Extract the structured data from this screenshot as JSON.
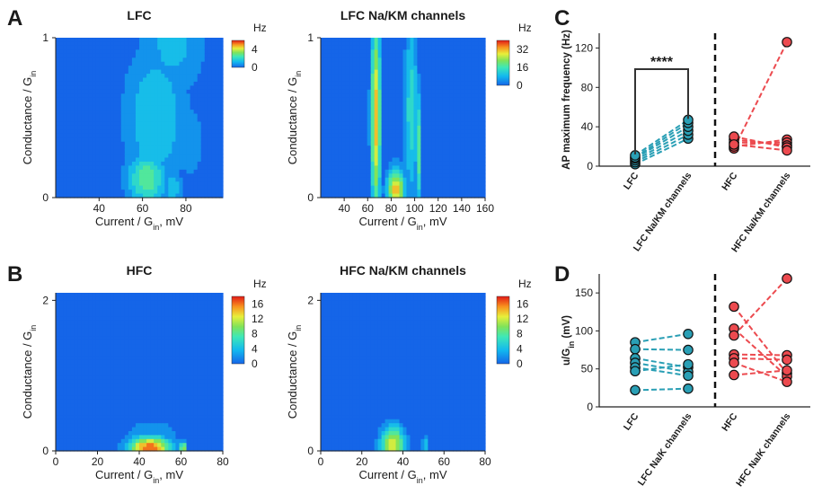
{
  "panel_letters": [
    "A",
    "B",
    "C",
    "D"
  ],
  "cbar_unit": "Hz",
  "colors": {
    "label_text": "#1a1a1a",
    "lfc": "#2a9fb5",
    "hfc": "#ec4a4f",
    "heatmap_bg": "#1565e8"
  },
  "chart_data": [
    {
      "id": "A1",
      "type": "heatmap",
      "title": "LFC",
      "xlabel_main": "Current / G",
      "xlabel_sub": "in",
      "xlabel_tail": ", mV",
      "ylabel_main": "Conductance / G",
      "ylabel_sub": "in",
      "xlim": [
        20,
        97
      ],
      "ylim": [
        0,
        1
      ],
      "xticks": [
        40,
        60,
        80
      ],
      "yticks": [
        0,
        1
      ],
      "colorbar": {
        "ticks": [
          0,
          4
        ],
        "max": 6
      },
      "blobs": [
        {
          "x": 74,
          "y": 0.98,
          "rx": 19,
          "ry": 0.45,
          "v": 1.6
        },
        {
          "x": 66,
          "y": 0.5,
          "rx": 18,
          "ry": 0.55,
          "v": 2.0
        },
        {
          "x": 62,
          "y": 0.12,
          "rx": 11,
          "ry": 0.2,
          "v": 3.2
        },
        {
          "x": 74,
          "y": 0.06,
          "rx": 5,
          "ry": 0.12,
          "v": 2.0
        },
        {
          "x": 82,
          "y": 0.35,
          "rx": 8,
          "ry": 0.3,
          "v": 1.2
        }
      ]
    },
    {
      "id": "A2",
      "type": "heatmap",
      "title": "LFC Na/KM channels",
      "xlabel_main": "Current / G",
      "xlabel_sub": "in",
      "xlabel_tail": ", mV",
      "ylabel_main": "Conductance / G",
      "ylabel_sub": "in",
      "xlim": [
        20,
        160
      ],
      "ylim": [
        0,
        1
      ],
      "xticks": [
        40,
        60,
        80,
        100,
        120,
        140,
        160
      ],
      "yticks": [
        0,
        1
      ],
      "colorbar": {
        "ticks": [
          0,
          16,
          32
        ],
        "max": 40
      },
      "blobs": [
        {
          "x": 67,
          "y": 0.5,
          "rx": 5,
          "ry": 0.75,
          "v": 34
        },
        {
          "x": 97,
          "y": 0.55,
          "rx": 7,
          "ry": 0.7,
          "v": 16
        },
        {
          "x": 84,
          "y": 0.05,
          "rx": 9,
          "ry": 0.16,
          "v": 34
        },
        {
          "x": 103,
          "y": 0.3,
          "rx": 3,
          "ry": 0.45,
          "v": 22
        }
      ]
    },
    {
      "id": "B1",
      "type": "heatmap",
      "title": "HFC",
      "xlabel_main": "Current / G",
      "xlabel_sub": "in",
      "xlabel_tail": ", mV",
      "ylabel_main": "Conductance / G",
      "ylabel_sub": "in",
      "xlim": [
        0,
        80
      ],
      "ylim": [
        0,
        2.1
      ],
      "xticks": [
        0,
        20,
        40,
        60,
        80
      ],
      "yticks": [
        0,
        2
      ],
      "colorbar": {
        "ticks": [
          0,
          4,
          8,
          12,
          16
        ],
        "max": 18
      },
      "blobs": [
        {
          "x": 45,
          "y": 0.04,
          "rx": 12,
          "ry": 0.18,
          "v": 18
        },
        {
          "x": 46,
          "y": 0.2,
          "rx": 16,
          "ry": 0.26,
          "v": 4
        },
        {
          "x": 37,
          "y": 0.45,
          "rx": 3,
          "ry": 0.3,
          "v": 2
        },
        {
          "x": 61,
          "y": 0.04,
          "rx": 2,
          "ry": 0.1,
          "v": 14
        }
      ]
    },
    {
      "id": "B2",
      "type": "heatmap",
      "title": "HFC Na/KM channels",
      "xlabel_main": "Current / G",
      "xlabel_sub": "in",
      "xlabel_tail": ", mV",
      "ylabel_main": "Conductance / G",
      "ylabel_sub": "in",
      "xlim": [
        0,
        80
      ],
      "ylim": [
        0,
        2.1
      ],
      "xticks": [
        0,
        20,
        40,
        60,
        80
      ],
      "yticks": [
        0,
        2
      ],
      "colorbar": {
        "ticks": [
          0,
          4,
          8,
          12,
          16
        ],
        "max": 18
      },
      "blobs": [
        {
          "x": 35,
          "y": 0.08,
          "rx": 7,
          "ry": 0.3,
          "v": 14
        },
        {
          "x": 51,
          "y": 0.05,
          "rx": 2,
          "ry": 0.2,
          "v": 6
        }
      ]
    },
    {
      "id": "C",
      "type": "scatter",
      "ylabel_main": "AP maximum frequency (Hz)",
      "ylabel_sub": "",
      "ylim": [
        0,
        135
      ],
      "yticks": [
        0,
        40,
        80,
        120
      ],
      "categories": [
        "LFC",
        "LFC Na/KM channels",
        "HFC",
        "HFC Na/KM channels"
      ],
      "significance": "****",
      "pairs": [
        {
          "group": "lfc",
          "pre": 2,
          "post": 28
        },
        {
          "group": "lfc",
          "pre": 4,
          "post": 32
        },
        {
          "group": "lfc",
          "pre": 6,
          "post": 36
        },
        {
          "group": "lfc",
          "pre": 8,
          "post": 40
        },
        {
          "group": "lfc",
          "pre": 9,
          "post": 44
        },
        {
          "group": "lfc",
          "pre": 11,
          "post": 47
        },
        {
          "group": "hfc",
          "pre": 18,
          "post": 126
        },
        {
          "group": "hfc",
          "pre": 20,
          "post": 27
        },
        {
          "group": "hfc",
          "pre": 24,
          "post": 24
        },
        {
          "group": "hfc",
          "pre": 27,
          "post": 21
        },
        {
          "group": "hfc",
          "pre": 30,
          "post": 19
        },
        {
          "group": "hfc",
          "pre": 22,
          "post": 16
        }
      ]
    },
    {
      "id": "D",
      "type": "scatter",
      "ylabel_main": "u/G",
      "ylabel_sub": "in",
      "ylabel_tail": " (mV)",
      "ylim": [
        0,
        175
      ],
      "yticks": [
        0,
        50,
        100,
        150
      ],
      "categories": [
        "LFC",
        "LFC Na/K channels",
        "HFC",
        "HFC Na/K channels"
      ],
      "pairs": [
        {
          "group": "lfc",
          "pre": 85,
          "post": 96
        },
        {
          "group": "lfc",
          "pre": 76,
          "post": 75
        },
        {
          "group": "lfc",
          "pre": 64,
          "post": 52
        },
        {
          "group": "lfc",
          "pre": 58,
          "post": 46
        },
        {
          "group": "lfc",
          "pre": 52,
          "post": 41
        },
        {
          "group": "lfc",
          "pre": 47,
          "post": 56
        },
        {
          "group": "lfc",
          "pre": 22,
          "post": 24
        },
        {
          "group": "hfc",
          "pre": 132,
          "post": 44
        },
        {
          "group": "hfc",
          "pre": 103,
          "post": 40
        },
        {
          "group": "hfc",
          "pre": 94,
          "post": 169
        },
        {
          "group": "hfc",
          "pre": 69,
          "post": 68
        },
        {
          "group": "hfc",
          "pre": 64,
          "post": 62
        },
        {
          "group": "hfc",
          "pre": 58,
          "post": 33
        },
        {
          "group": "hfc",
          "pre": 42,
          "post": 48
        }
      ]
    }
  ]
}
